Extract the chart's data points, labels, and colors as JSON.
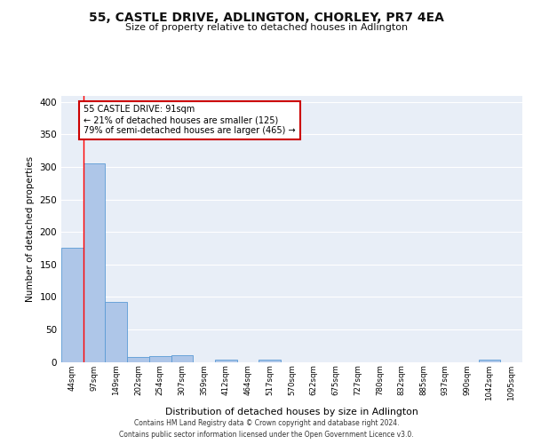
{
  "title": "55, CASTLE DRIVE, ADLINGTON, CHORLEY, PR7 4EA",
  "subtitle": "Size of property relative to detached houses in Adlington",
  "xlabel": "Distribution of detached houses by size in Adlington",
  "ylabel": "Number of detached properties",
  "categories": [
    "44sqm",
    "97sqm",
    "149sqm",
    "202sqm",
    "254sqm",
    "307sqm",
    "359sqm",
    "412sqm",
    "464sqm",
    "517sqm",
    "570sqm",
    "622sqm",
    "675sqm",
    "727sqm",
    "780sqm",
    "832sqm",
    "885sqm",
    "937sqm",
    "990sqm",
    "1042sqm",
    "1095sqm"
  ],
  "values": [
    175,
    305,
    92,
    8,
    9,
    10,
    0,
    4,
    0,
    4,
    0,
    0,
    0,
    0,
    0,
    0,
    0,
    0,
    0,
    4,
    0
  ],
  "bar_color": "#aec6e8",
  "bar_edge_color": "#5b9bd5",
  "annotation_text": "55 CASTLE DRIVE: 91sqm\n← 21% of detached houses are smaller (125)\n79% of semi-detached houses are larger (465) →",
  "annotation_box_color": "#ffffff",
  "annotation_box_edge": "#cc0000",
  "ylim": [
    0,
    410
  ],
  "yticks": [
    0,
    50,
    100,
    150,
    200,
    250,
    300,
    350,
    400
  ],
  "background_color": "#e8eef7",
  "footer_line1": "Contains HM Land Registry data © Crown copyright and database right 2024.",
  "footer_line2": "Contains public sector information licensed under the Open Government Licence v3.0."
}
